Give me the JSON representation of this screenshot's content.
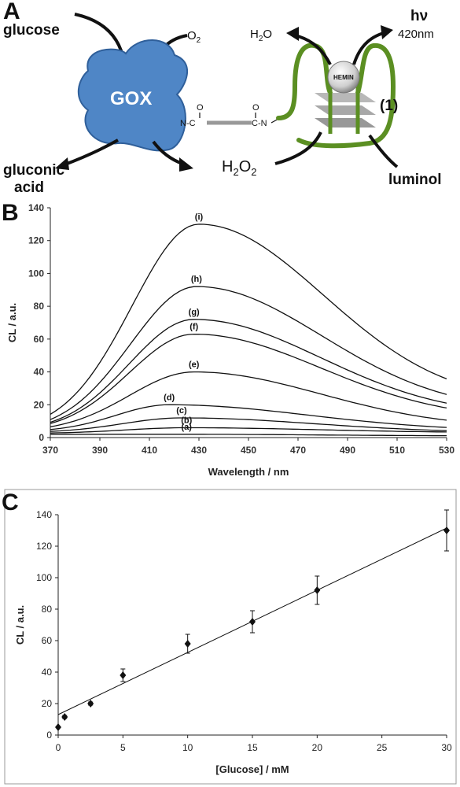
{
  "panel_a": {
    "letter": "A",
    "glucose": "glucose",
    "o2": "O",
    "o2_sub": "2",
    "gox": "GOX",
    "gluconic_1": "gluconic",
    "gluconic_2": "acid",
    "h2o2_main": "H",
    "h2o2_sub1": "2",
    "h2o2_o": "O",
    "h2o2_sub2": "2",
    "h2o_main": "H",
    "h2o_sub": "2",
    "h2o_o": "O",
    "hv": "hν",
    "nm": "420nm",
    "hemin": "HEMIN",
    "label_1": "(1)",
    "luminol": "luminol",
    "linker_left": "N-C",
    "linker_right": "C-N",
    "linker_o": "O"
  },
  "chart_data": [
    {
      "panel": "B",
      "type": "line",
      "xlabel": "Wavelength / nm",
      "ylabel": "CL / a.u.",
      "xlim": [
        370,
        530
      ],
      "ylim": [
        0,
        140
      ],
      "xticks": [
        370,
        390,
        410,
        430,
        450,
        470,
        490,
        510,
        530
      ],
      "yticks": [
        0,
        20,
        40,
        60,
        80,
        100,
        120,
        140
      ],
      "grid": false,
      "series": [
        {
          "name": "(a)",
          "peak_x": 425,
          "peak_y": 2,
          "start_y": 2,
          "end_y": 1
        },
        {
          "name": "(b)",
          "peak_x": 425,
          "peak_y": 6,
          "start_y": 2.5,
          "end_y": 3
        },
        {
          "name": "(c)",
          "peak_x": 423,
          "peak_y": 12,
          "start_y": 3,
          "end_y": 3
        },
        {
          "name": "(d)",
          "peak_x": 418,
          "peak_y": 20,
          "start_y": 3.5,
          "end_y": 4
        },
        {
          "name": "(e)",
          "peak_x": 428,
          "peak_y": 40,
          "start_y": 3.5,
          "end_y": 6
        },
        {
          "name": "(f)",
          "peak_x": 428,
          "peak_y": 63,
          "start_y": 3.5,
          "end_y": 11
        },
        {
          "name": "(g)",
          "peak_x": 428,
          "peak_y": 72,
          "start_y": 3.5,
          "end_y": 13
        },
        {
          "name": "(h)",
          "peak_x": 429,
          "peak_y": 92,
          "start_y": 3.5,
          "end_y": 16
        },
        {
          "name": "(i)",
          "peak_x": 430,
          "peak_y": 130,
          "start_y": 3.5,
          "end_y": 21
        }
      ]
    },
    {
      "panel": "C",
      "type": "scatter",
      "xlabel": "[Glucose] / mM",
      "ylabel": "CL / a.u.",
      "xlim": [
        0,
        30
      ],
      "ylim": [
        0,
        140
      ],
      "xticks": [
        0,
        5,
        10,
        15,
        20,
        25,
        30
      ],
      "yticks": [
        0,
        20,
        40,
        60,
        80,
        100,
        120,
        140
      ],
      "grid": false,
      "points": [
        {
          "x": 0,
          "y": 5,
          "err": 0
        },
        {
          "x": 0.5,
          "y": 11.5,
          "err": 1
        },
        {
          "x": 2.5,
          "y": 20,
          "err": 1
        },
        {
          "x": 5,
          "y": 38,
          "err": 4
        },
        {
          "x": 10,
          "y": 58,
          "err": 6
        },
        {
          "x": 15,
          "y": 72,
          "err": 7
        },
        {
          "x": 20,
          "y": 92,
          "err": 9
        },
        {
          "x": 30,
          "y": 130,
          "err": 13
        }
      ],
      "fit": {
        "slope": 3.95,
        "intercept": 13
      }
    }
  ],
  "panel_b": {
    "letter": "B"
  },
  "panel_c": {
    "letter": "C"
  }
}
